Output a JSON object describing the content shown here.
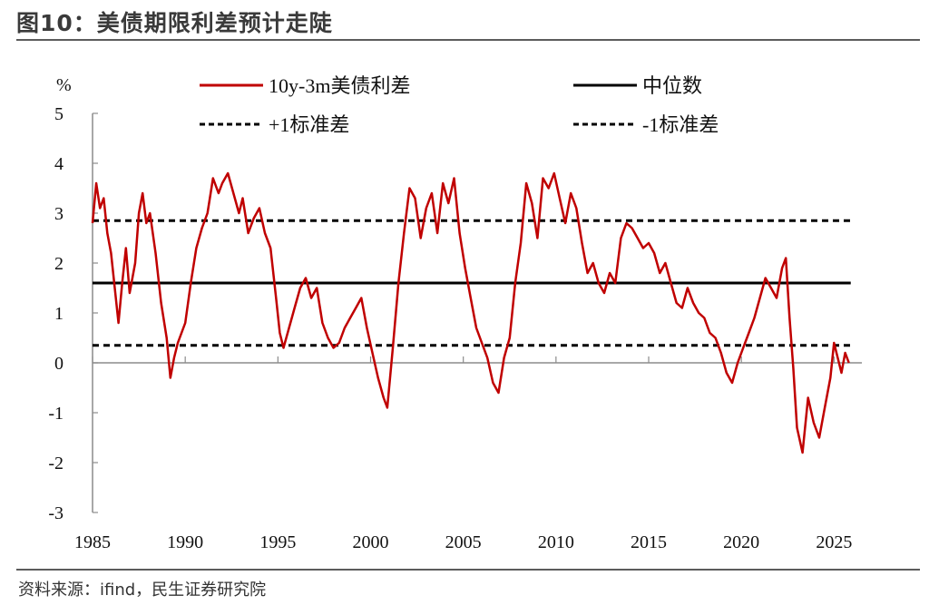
{
  "figure": {
    "title": "图10：美债期限利差预计走陡",
    "source": "资料来源：ifind，民生证券研究院"
  },
  "colors": {
    "spread": "#c00000",
    "median": "#000000",
    "band": "#000000",
    "axis": "#8c8c8c"
  },
  "chart_data": {
    "type": "line",
    "ylabel": "%",
    "ylim": [
      -3,
      5
    ],
    "xlim": [
      1985,
      2026.5
    ],
    "x_ticks": [
      1985,
      1990,
      1995,
      2000,
      2005,
      2010,
      2015,
      2020,
      2025
    ],
    "y_ticks": [
      5,
      4,
      3,
      2,
      1,
      0,
      -1,
      -2,
      -3
    ],
    "grid": false,
    "legend_position": "top",
    "series": [
      {
        "name": "10y-3m美债利差",
        "style": "solid",
        "x": [
          1985.0,
          1985.2,
          1985.4,
          1985.6,
          1985.8,
          1986.0,
          1986.2,
          1986.4,
          1986.6,
          1986.8,
          1987.0,
          1987.3,
          1987.5,
          1987.7,
          1987.9,
          1988.1,
          1988.4,
          1988.7,
          1989.0,
          1989.2,
          1989.4,
          1989.6,
          1989.8,
          1990.0,
          1990.3,
          1990.6,
          1990.9,
          1991.2,
          1991.5,
          1991.8,
          1992.0,
          1992.3,
          1992.6,
          1992.9,
          1993.1,
          1993.4,
          1993.7,
          1994.0,
          1994.3,
          1994.6,
          1994.9,
          1995.1,
          1995.3,
          1995.6,
          1995.9,
          1996.2,
          1996.5,
          1996.8,
          1997.1,
          1997.4,
          1997.7,
          1998.0,
          1998.3,
          1998.6,
          1998.9,
          1999.2,
          1999.5,
          1999.8,
          2000.1,
          2000.4,
          2000.7,
          2000.9,
          2001.2,
          2001.5,
          2001.8,
          2002.1,
          2002.4,
          2002.7,
          2003.0,
          2003.3,
          2003.6,
          2003.9,
          2004.2,
          2004.5,
          2004.8,
          2005.1,
          2005.4,
          2005.7,
          2006.0,
          2006.3,
          2006.6,
          2006.9,
          2007.2,
          2007.5,
          2007.8,
          2008.1,
          2008.4,
          2008.7,
          2009.0,
          2009.3,
          2009.6,
          2009.9,
          2010.2,
          2010.5,
          2010.8,
          2011.1,
          2011.4,
          2011.7,
          2012.0,
          2012.3,
          2012.6,
          2012.9,
          2013.2,
          2013.5,
          2013.8,
          2014.1,
          2014.4,
          2014.7,
          2015.0,
          2015.3,
          2015.6,
          2015.9,
          2016.2,
          2016.5,
          2016.8,
          2017.1,
          2017.4,
          2017.7,
          2018.0,
          2018.3,
          2018.6,
          2018.9,
          2019.2,
          2019.5,
          2019.8,
          2020.1,
          2020.4,
          2020.7,
          2021.0,
          2021.3,
          2021.6,
          2021.9,
          2022.2,
          2022.4,
          2022.6,
          2022.8,
          2023.0,
          2023.3,
          2023.6,
          2023.9,
          2024.2,
          2024.5,
          2024.8,
          2025.0,
          2025.2,
          2025.4,
          2025.6,
          2025.8
        ],
        "y": [
          2.8,
          3.6,
          3.1,
          3.3,
          2.6,
          2.2,
          1.5,
          0.8,
          1.6,
          2.3,
          1.4,
          2.0,
          3.0,
          3.4,
          2.8,
          3.0,
          2.2,
          1.2,
          0.5,
          -0.3,
          0.1,
          0.4,
          0.6,
          0.8,
          1.6,
          2.3,
          2.7,
          3.0,
          3.7,
          3.4,
          3.6,
          3.8,
          3.4,
          3.0,
          3.3,
          2.6,
          2.9,
          3.1,
          2.6,
          2.3,
          1.3,
          0.6,
          0.3,
          0.7,
          1.1,
          1.5,
          1.7,
          1.3,
          1.5,
          0.8,
          0.5,
          0.3,
          0.4,
          0.7,
          0.9,
          1.1,
          1.3,
          0.7,
          0.2,
          -0.3,
          -0.7,
          -0.9,
          0.3,
          1.6,
          2.6,
          3.5,
          3.3,
          2.5,
          3.1,
          3.4,
          2.6,
          3.6,
          3.2,
          3.7,
          2.6,
          1.9,
          1.3,
          0.7,
          0.4,
          0.1,
          -0.4,
          -0.6,
          0.1,
          0.5,
          1.6,
          2.4,
          3.6,
          3.2,
          2.5,
          3.7,
          3.5,
          3.8,
          3.3,
          2.8,
          3.4,
          3.1,
          2.4,
          1.8,
          2.0,
          1.6,
          1.4,
          1.8,
          1.6,
          2.5,
          2.8,
          2.7,
          2.5,
          2.3,
          2.4,
          2.2,
          1.8,
          2.0,
          1.6,
          1.2,
          1.1,
          1.5,
          1.2,
          1.0,
          0.9,
          0.6,
          0.5,
          0.2,
          -0.2,
          -0.4,
          0.0,
          0.3,
          0.6,
          0.9,
          1.3,
          1.7,
          1.5,
          1.3,
          1.9,
          2.1,
          0.9,
          -0.1,
          -1.3,
          -1.8,
          -0.7,
          -1.2,
          -1.5,
          -0.9,
          -0.3,
          0.4,
          0.1,
          -0.2,
          0.2,
          0.0
        ]
      },
      {
        "name": "中位数",
        "style": "solid",
        "value": 1.6
      },
      {
        "name": "+1标准差",
        "style": "dashed",
        "value": 2.85
      },
      {
        "name": "-1标准差",
        "style": "dashed",
        "value": 0.35
      }
    ]
  }
}
